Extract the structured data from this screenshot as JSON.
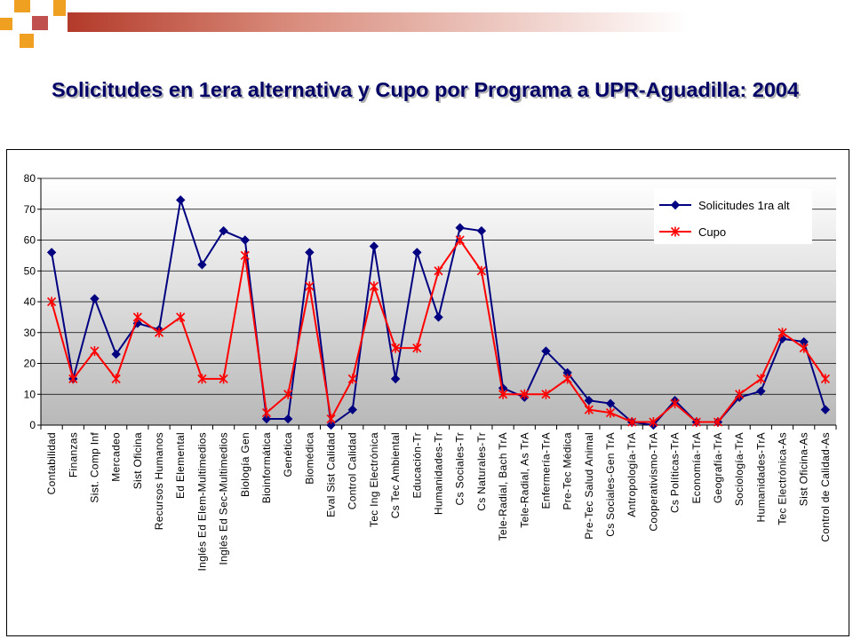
{
  "slide": {
    "title": "Solicitudes en 1era alternativa y Cupo por Programa a UPR-Aguadilla: 2004"
  },
  "theme": {
    "title_color": "#000066",
    "accent_orange": "#f0a020",
    "accent_red": "#c0504d",
    "series1_color": "#000080",
    "series2_color": "#ff0000"
  },
  "chart_data": {
    "type": "line",
    "categories": [
      "Contabilidad",
      "Finanzas",
      "Sist. Comp Inf",
      "Mercadeo",
      "Sist Oficina",
      "Recursos Humanos",
      "Ed Elemental",
      "Inglés Ed Elem-Multimedios",
      "Inglés Ed Sec-Multimedios",
      "Biología Gen",
      "Bioinformática",
      "Genética",
      "Biomédica",
      "Eval Sist Calidad",
      "Control Calidad",
      "Tec Ing Electrónica",
      "Cs Tec Ambiental",
      "Educación-Tr",
      "Humanidades-Tr",
      "Cs Sociales-Tr",
      "Cs Naturales-Tr",
      "Tele-Radial, Bach TrA",
      "Tele-Radial, As TrA",
      "Enfermería-TrA",
      "Pre-Tec Médica",
      "Pre-Tec Salud Animal",
      "Cs Sociales-Gen TrA",
      "Antropología-TrA",
      "Cooperativismo-TrA",
      "Cs Políticas-TrA",
      "Economía-TrA",
      "Geografía-TrA",
      "Sociología-TrA",
      "Humanidades-TrA",
      "Tec Electrónica-As",
      "Sist Oficina-As",
      "Control de Calidad-As"
    ],
    "series": [
      {
        "name": "Solicitudes 1ra alt",
        "marker": "diamond",
        "values": [
          56,
          15,
          41,
          23,
          33,
          31,
          73,
          52,
          63,
          60,
          2,
          2,
          56,
          0,
          5,
          58,
          15,
          56,
          35,
          64,
          63,
          12,
          9,
          24,
          17,
          8,
          7,
          1,
          0,
          8,
          1,
          1,
          9,
          11,
          28,
          27,
          5
        ]
      },
      {
        "name": "Cupo",
        "marker": "asterisk",
        "values": [
          40,
          15,
          24,
          15,
          35,
          30,
          35,
          15,
          15,
          55,
          4,
          10,
          45,
          2,
          15,
          45,
          25,
          25,
          50,
          60,
          50,
          10,
          10,
          10,
          15,
          5,
          4,
          1,
          1,
          7,
          1,
          1,
          10,
          15,
          30,
          25,
          15
        ]
      }
    ],
    "ylim": [
      0,
      80
    ],
    "yticks": [
      0,
      10,
      20,
      30,
      40,
      50,
      60,
      70,
      80
    ],
    "title": "",
    "xlabel": "",
    "ylabel": "",
    "grid": true,
    "legend_position": "top-right"
  }
}
